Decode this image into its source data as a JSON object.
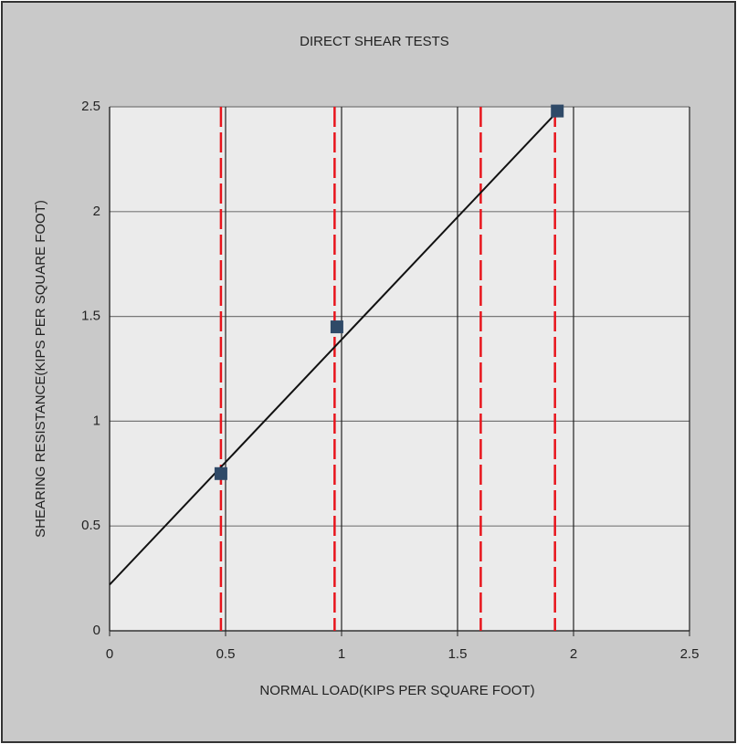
{
  "chart_data": {
    "type": "scatter",
    "title": "DIRECT SHEAR TESTS",
    "xlabel": "NORMAL LOAD(KIPS PER SQUARE FOOT)",
    "ylabel": "SHEARING RESISTANCE(KIPS PER SQUARE FOOT)",
    "series": [
      {
        "color": "#2f4a68",
        "x": [
          0.48,
          0.98,
          1.93
        ],
        "values": [
          0.75,
          1.45,
          2.48
        ]
      }
    ],
    "trendline": {
      "color": "#111111",
      "x": [
        0,
        1.95
      ],
      "values": [
        0.22,
        2.5
      ]
    },
    "reference_lines_x": {
      "color": "#e8141c",
      "values": [
        0.48,
        0.97,
        1.6,
        1.92
      ]
    },
    "xlim": [
      0,
      2.5
    ],
    "xticks": [
      0,
      0.5,
      1,
      1.5,
      2,
      2.5
    ],
    "ylim": [
      0,
      2.5
    ],
    "yticks": [
      0,
      0.5,
      1,
      1.5,
      2,
      2.5
    ],
    "grid": true
  }
}
